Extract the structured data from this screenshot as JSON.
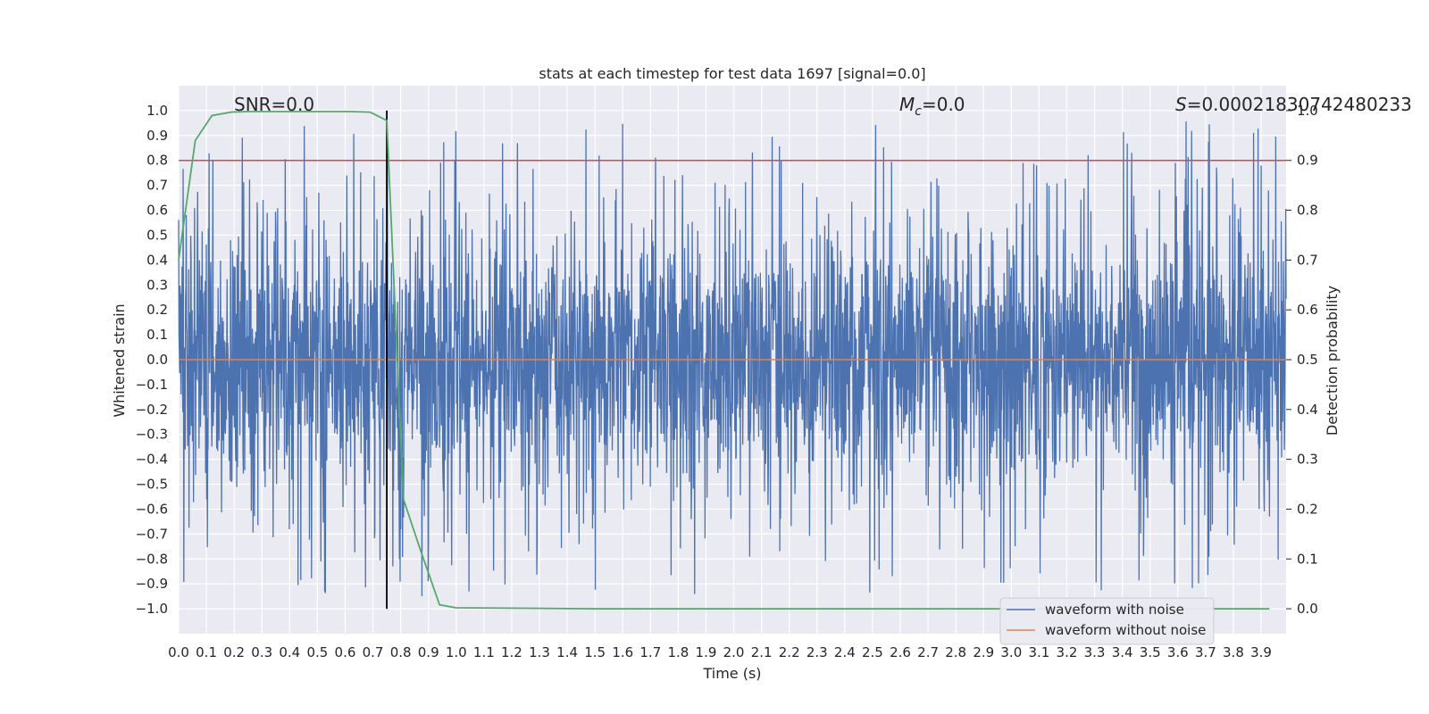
{
  "chart_data": {
    "type": "line",
    "title": "stats at each timestep for test data 1697 [signal=0.0]",
    "xlabel": "Time (s)",
    "ylabel": "Whitened strain",
    "y2label": "Detection probability",
    "xlim": [
      0.0,
      3.99
    ],
    "ylim": [
      -1.1,
      1.1
    ],
    "y2lim": [
      -0.05,
      1.05
    ],
    "xticks": [
      "0.0",
      "0.1",
      "0.2",
      "0.3",
      "0.4",
      "0.5",
      "0.6",
      "0.7",
      "0.8",
      "0.9",
      "1.0",
      "1.1",
      "1.2",
      "1.3",
      "1.4",
      "1.5",
      "1.6",
      "1.7",
      "1.8",
      "1.9",
      "2.0",
      "2.1",
      "2.2",
      "2.3",
      "2.4",
      "2.5",
      "2.6",
      "2.7",
      "2.8",
      "2.9",
      "3.0",
      "3.1",
      "3.2",
      "3.3",
      "3.4",
      "3.5",
      "3.6",
      "3.7",
      "3.8",
      "3.9"
    ],
    "yticks": [
      "1.0",
      "0.9",
      "0.8",
      "0.7",
      "0.6",
      "0.5",
      "0.4",
      "0.3",
      "0.2",
      "0.1",
      "0.0",
      "-0.1",
      "-0.2",
      "-0.3",
      "-0.4",
      "-0.5",
      "-0.6",
      "-0.7",
      "-0.8",
      "-0.9",
      "-1.0"
    ],
    "y2ticks": [
      "1.0",
      "0.9",
      "0.8",
      "0.7",
      "0.6",
      "0.5",
      "0.4",
      "0.3",
      "0.2",
      "0.1",
      "0.0"
    ],
    "grid": true,
    "legend_position": "bottom-right",
    "annotations": {
      "snr": "SNR=0.0",
      "mc_symbol": "M",
      "mc_sub": "c",
      "mc_value": "=0.0",
      "s_symbol": "S",
      "s_value": "=0.00021830742480233"
    },
    "threshold": {
      "value": 0.9,
      "axis": "right",
      "color": "#c44e52"
    },
    "vertical_marker": {
      "x": 0.75,
      "color": "#000000"
    },
    "series": [
      {
        "name": "waveform with noise",
        "color": "#4c72b0",
        "axis": "left",
        "kind": "noise",
        "t_range": [
          0.0,
          3.99
        ],
        "amplitude_typical": 0.45,
        "amplitude_peak": 1.0
      },
      {
        "name": "waveform without noise",
        "color": "#dd8452",
        "axis": "left",
        "x": [
          0.0,
          3.99
        ],
        "y": [
          0.0,
          0.0
        ]
      },
      {
        "name": "",
        "color": "#55a868",
        "axis": "right",
        "x": [
          0.0,
          0.06,
          0.12,
          0.19,
          0.25,
          0.31,
          0.38,
          0.44,
          0.5,
          0.56,
          0.62,
          0.69,
          0.75,
          0.81,
          0.87,
          0.94,
          1.0,
          1.25,
          1.5,
          2.0,
          2.5,
          3.0,
          3.5,
          3.93
        ],
        "y": [
          0.7,
          0.94,
          0.99,
          0.997,
          0.998,
          0.998,
          0.998,
          0.998,
          0.998,
          0.998,
          0.998,
          0.997,
          0.98,
          0.22,
          0.12,
          0.008,
          0.002,
          0.001,
          0.0,
          0.0,
          0.0,
          0.0,
          0.0,
          0.0
        ]
      }
    ]
  }
}
